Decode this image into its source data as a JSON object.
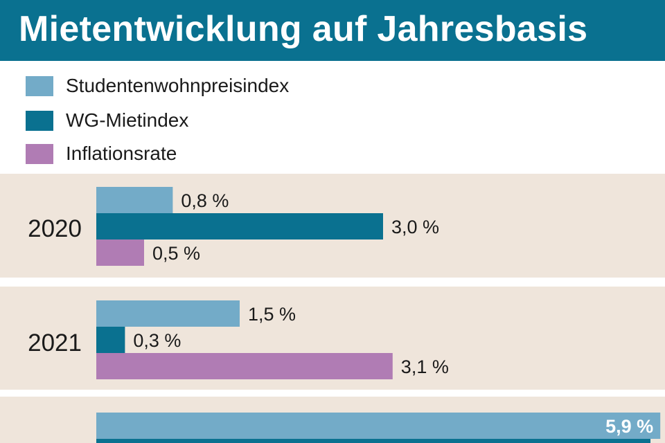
{
  "title": "Mietentwicklung auf Jahresbasis",
  "colors": {
    "header": "#0a7190",
    "panel": "#efe5db",
    "series": [
      "#73abc8",
      "#0a7190",
      "#b07cb4"
    ]
  },
  "chart_data": {
    "type": "bar",
    "orientation": "horizontal",
    "title": "Mietentwicklung auf Jahresbasis",
    "legend_position": "top",
    "categories": [
      "2020",
      "2021",
      ""
    ],
    "series": [
      {
        "name": "Studentenwohnpreisindex",
        "color": "#73abc8",
        "values": [
          0.8,
          1.5,
          5.9
        ],
        "labels": [
          "0,8 %",
          "1,5 %",
          "5,9 %"
        ]
      },
      {
        "name": "WG-Mietindex",
        "color": "#0a7190",
        "values": [
          3.0,
          0.3,
          null
        ],
        "labels": [
          "3,0 %",
          "0,3 %",
          ""
        ]
      },
      {
        "name": "Inflationsrate",
        "color": "#b07cb4",
        "values": [
          0.5,
          3.1,
          null
        ],
        "labels": [
          "0,5 %",
          "3,1 %",
          ""
        ]
      }
    ]
  }
}
